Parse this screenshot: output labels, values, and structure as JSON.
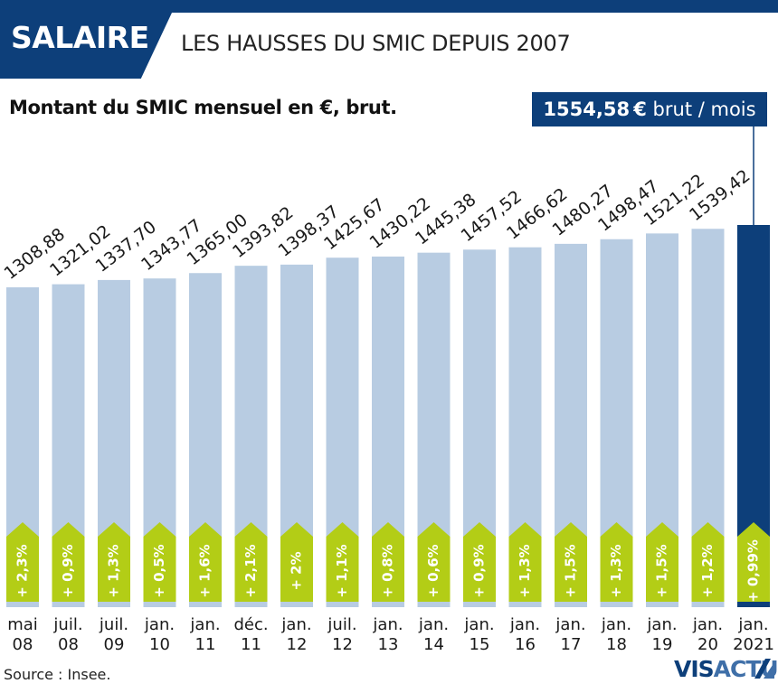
{
  "header": {
    "tag": "SALAIRE",
    "title": "LES HAUSSES DU SMIC DEPUIS 2007"
  },
  "latest": {
    "amount": "1554,58 €",
    "unit": " brut / mois"
  },
  "footer": {
    "source": "Source : Insee.",
    "logo_part1": "VIS",
    "logo_part2": "ACTU"
  },
  "colors": {
    "navy": "#0d3f7a",
    "bar": "#b8cce2",
    "green": "#b3cd16"
  },
  "chart_data": {
    "type": "bar",
    "title": "Montant du SMIC mensuel en €, brut.",
    "xlabel": "",
    "ylabel": "",
    "categories": [
      [
        "mai",
        "08"
      ],
      [
        "juil.",
        "08"
      ],
      [
        "juil.",
        "09"
      ],
      [
        "jan.",
        "10"
      ],
      [
        "jan.",
        "11"
      ],
      [
        "déc.",
        "11"
      ],
      [
        "jan.",
        "12"
      ],
      [
        "juil.",
        "12"
      ],
      [
        "jan.",
        "13"
      ],
      [
        "jan.",
        "14"
      ],
      [
        "jan.",
        "15"
      ],
      [
        "jan.",
        "16"
      ],
      [
        "jan.",
        "17"
      ],
      [
        "jan.",
        "18"
      ],
      [
        "jan.",
        "19"
      ],
      [
        "jan.",
        "20"
      ],
      [
        "jan.",
        "2021"
      ]
    ],
    "values": [
      1308.88,
      1321.02,
      1337.7,
      1343.77,
      1365.0,
      1393.82,
      1398.37,
      1425.67,
      1430.22,
      1445.38,
      1457.52,
      1466.62,
      1480.27,
      1498.47,
      1521.22,
      1539.42,
      1554.58
    ],
    "value_labels": [
      "1308,88",
      "1321,02",
      "1337,70",
      "1343,77",
      "1365,00",
      "1393,82",
      "1398,37",
      "1425,67",
      "1430,22",
      "1445,38",
      "1457,52",
      "1466,62",
      "1480,27",
      "1498,47",
      "1521,22",
      "1539,42",
      null
    ],
    "increases": [
      "+ 2,3%",
      "+ 0,9%",
      "+ 1,3%",
      "+ 0,5%",
      "+ 1,6%",
      "+ 2,1%",
      "+ 2%",
      "+ 1,1%",
      "+ 0,8%",
      "+ 0,6%",
      "+ 0,9%",
      "+ 1,3%",
      "+ 1,5%",
      "+ 1,3%",
      "+ 1,5%",
      "+ 1,2%",
      "+ 0,99%"
    ],
    "highlight_index": 16
  }
}
